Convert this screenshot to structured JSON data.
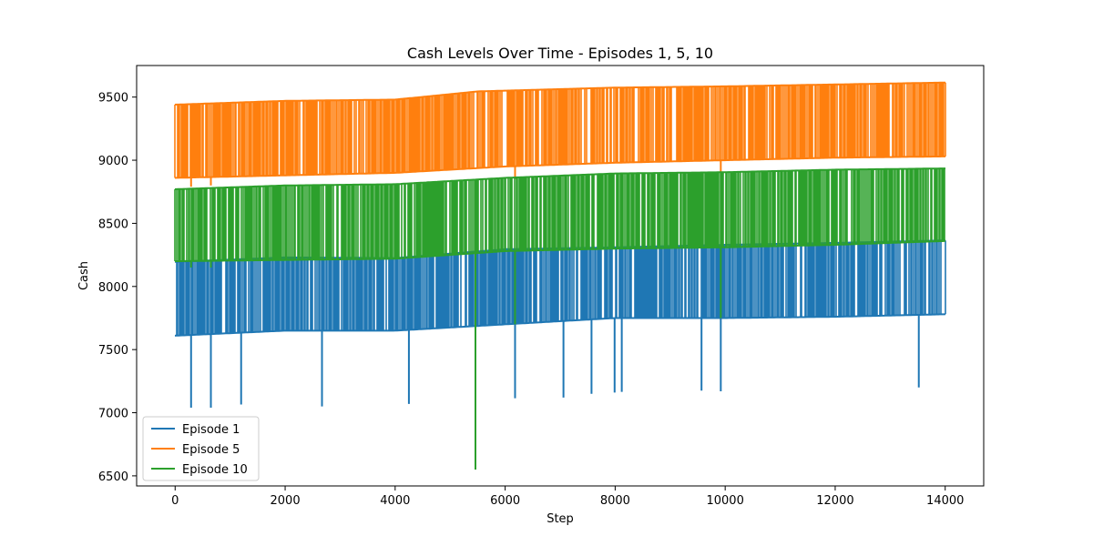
{
  "chart_data": {
    "type": "line",
    "title": "Cash Levels Over Time - Episodes 1, 5, 10",
    "xlabel": "Step",
    "ylabel": "Cash",
    "xlim": [
      -700,
      14700
    ],
    "ylim": [
      6420,
      9750
    ],
    "x_ticks": [
      0,
      2000,
      4000,
      6000,
      8000,
      10000,
      12000,
      14000
    ],
    "y_ticks": [
      6500,
      7000,
      7500,
      8000,
      8500,
      9000,
      9500
    ],
    "legend_position": "lower-left",
    "grid": false,
    "x_range_data": [
      0,
      14000
    ],
    "series": [
      {
        "name": "Episode 1",
        "color": "#1f77b4",
        "upper": [
          [
            0,
            8195
          ],
          [
            2000,
            8230
          ],
          [
            4000,
            8225
          ],
          [
            6000,
            8295
          ],
          [
            8000,
            8310
          ],
          [
            10000,
            8330
          ],
          [
            12000,
            8345
          ],
          [
            14000,
            8365
          ]
        ],
        "lower": [
          [
            0,
            7610
          ],
          [
            2000,
            7650
          ],
          [
            4000,
            7650
          ],
          [
            6000,
            7700
          ],
          [
            8000,
            7750
          ],
          [
            10000,
            7750
          ],
          [
            12000,
            7760
          ],
          [
            14000,
            7780
          ]
        ],
        "dips": [
          [
            290,
            7040
          ],
          [
            650,
            7040
          ],
          [
            1200,
            7065
          ],
          [
            2670,
            7050
          ],
          [
            4250,
            7070
          ],
          [
            6180,
            7115
          ],
          [
            7060,
            7120
          ],
          [
            7570,
            7150
          ],
          [
            7990,
            7160
          ],
          [
            8120,
            7165
          ],
          [
            9570,
            7175
          ],
          [
            9920,
            7170
          ],
          [
            13520,
            7200
          ]
        ]
      },
      {
        "name": "Episode 5",
        "color": "#ff7f0e",
        "upper": [
          [
            0,
            9440
          ],
          [
            2000,
            9470
          ],
          [
            4000,
            9480
          ],
          [
            5500,
            9545
          ],
          [
            8000,
            9575
          ],
          [
            10000,
            9585
          ],
          [
            12000,
            9600
          ],
          [
            14000,
            9615
          ]
        ],
        "lower": [
          [
            0,
            8860
          ],
          [
            2000,
            8880
          ],
          [
            4000,
            8900
          ],
          [
            6000,
            8950
          ],
          [
            8000,
            8980
          ],
          [
            10000,
            9000
          ],
          [
            12000,
            9020
          ],
          [
            14000,
            9030
          ]
        ],
        "dips": [
          [
            290,
            8790
          ],
          [
            650,
            8800
          ],
          [
            6180,
            8850
          ],
          [
            9920,
            8900
          ]
        ]
      },
      {
        "name": "Episode 10",
        "color": "#2ca02c",
        "upper": [
          [
            0,
            8770
          ],
          [
            2000,
            8800
          ],
          [
            4000,
            8810
          ],
          [
            6000,
            8860
          ],
          [
            8000,
            8895
          ],
          [
            10000,
            8905
          ],
          [
            12000,
            8925
          ],
          [
            14000,
            8935
          ]
        ],
        "lower": [
          [
            0,
            8200
          ],
          [
            2000,
            8210
          ],
          [
            4000,
            8220
          ],
          [
            6000,
            8280
          ],
          [
            8000,
            8300
          ],
          [
            10000,
            8310
          ],
          [
            12000,
            8330
          ],
          [
            14000,
            8360
          ]
        ],
        "dips": [
          [
            290,
            8150
          ],
          [
            650,
            8150
          ],
          [
            5460,
            6550
          ],
          [
            6180,
            7700
          ],
          [
            9920,
            7750
          ]
        ]
      }
    ]
  }
}
